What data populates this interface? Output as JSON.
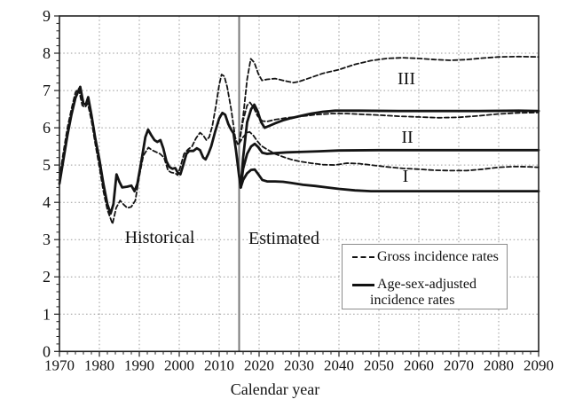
{
  "colors": {
    "line": "#141414",
    "grid": "#9a9a9a",
    "divider": "#7a7a7a",
    "border": "#222222",
    "legend_border": "#8c8c8c",
    "background": "#ffffff"
  },
  "annotations": {
    "historical": "Historical",
    "estimated": "Estimated",
    "scenario_I": "I",
    "scenario_II": "II",
    "scenario_III": "III"
  },
  "legend": {
    "gross_label": "Gross incidence rates",
    "adjusted_label_line1": "Age-sex-adjusted",
    "adjusted_label_line2": "incidence rates"
  },
  "chart_data": {
    "type": "line",
    "title": "",
    "xlabel": "Calendar year",
    "ylabel": "",
    "xlim": [
      1970,
      2090
    ],
    "ylim": [
      0,
      9
    ],
    "x_ticks": [
      1970,
      1980,
      1990,
      2000,
      2010,
      2020,
      2030,
      2040,
      2050,
      2060,
      2070,
      2080,
      2090
    ],
    "y_ticks": [
      0,
      1,
      2,
      3,
      4,
      5,
      6,
      7,
      8,
      9
    ],
    "x_minor_step": 2,
    "y_minor_step": 0.2,
    "grid": "dotted",
    "divider_year": 2015,
    "legend_position": "bottom-right",
    "series": [
      {
        "name": "historical-gross",
        "style": "dashed",
        "points": [
          [
            1970,
            4.65
          ],
          [
            1971,
            5.35
          ],
          [
            1972,
            6.0
          ],
          [
            1973,
            6.5
          ],
          [
            1974,
            6.95
          ],
          [
            1974.8,
            7.05
          ],
          [
            1975.7,
            6.6
          ],
          [
            1976.4,
            6.55
          ],
          [
            1977.1,
            6.65
          ],
          [
            1978,
            6.2
          ],
          [
            1979,
            5.55
          ],
          [
            1980,
            4.95
          ],
          [
            1981,
            4.3
          ],
          [
            1982,
            3.8
          ],
          [
            1983.3,
            3.42
          ],
          [
            1984.2,
            3.85
          ],
          [
            1985.2,
            4.05
          ],
          [
            1986,
            3.95
          ],
          [
            1987,
            3.85
          ],
          [
            1988,
            3.88
          ],
          [
            1989,
            4.05
          ],
          [
            1990,
            4.7
          ],
          [
            1991,
            5.25
          ],
          [
            1992.3,
            5.47
          ],
          [
            1993.2,
            5.4
          ],
          [
            1994.2,
            5.35
          ],
          [
            1995.2,
            5.3
          ],
          [
            1996.2,
            5.2
          ],
          [
            1997.2,
            4.85
          ],
          [
            1998,
            4.8
          ],
          [
            1999,
            4.78
          ],
          [
            1999.6,
            4.73
          ],
          [
            2000.3,
            4.95
          ],
          [
            2001.2,
            5.3
          ],
          [
            2002.2,
            5.42
          ],
          [
            2003.2,
            5.5
          ],
          [
            2004.2,
            5.72
          ],
          [
            2005.2,
            5.87
          ],
          [
            2006,
            5.8
          ],
          [
            2006.8,
            5.67
          ],
          [
            2007.5,
            5.75
          ],
          [
            2008.3,
            6.05
          ],
          [
            2009.2,
            6.6
          ],
          [
            2010,
            7.15
          ],
          [
            2010.6,
            7.43
          ],
          [
            2011.3,
            7.38
          ],
          [
            2012,
            7.1
          ],
          [
            2013,
            6.5
          ],
          [
            2014,
            5.75
          ],
          [
            2014.6,
            5.56
          ],
          [
            2015,
            5.58
          ]
        ]
      },
      {
        "name": "historical-adjusted",
        "style": "solid",
        "points": [
          [
            1970,
            4.5
          ],
          [
            1971,
            5.15
          ],
          [
            1972,
            5.8
          ],
          [
            1973,
            6.35
          ],
          [
            1974,
            6.8
          ],
          [
            1975.2,
            7.1
          ],
          [
            1976,
            6.65
          ],
          [
            1976.6,
            6.62
          ],
          [
            1977.2,
            6.82
          ],
          [
            1978,
            6.35
          ],
          [
            1979,
            5.7
          ],
          [
            1980,
            5.15
          ],
          [
            1981,
            4.5
          ],
          [
            1982,
            3.95
          ],
          [
            1982.8,
            3.7
          ],
          [
            1983.5,
            3.95
          ],
          [
            1984.3,
            4.75
          ],
          [
            1985,
            4.55
          ],
          [
            1985.7,
            4.4
          ],
          [
            1987,
            4.42
          ],
          [
            1988,
            4.45
          ],
          [
            1988.8,
            4.3
          ],
          [
            1989.5,
            4.5
          ],
          [
            1990.5,
            5.1
          ],
          [
            1991.5,
            5.75
          ],
          [
            1992.2,
            5.95
          ],
          [
            1993,
            5.8
          ],
          [
            1993.8,
            5.67
          ],
          [
            1994.5,
            5.62
          ],
          [
            1995.3,
            5.67
          ],
          [
            1996,
            5.45
          ],
          [
            1996.8,
            5.1
          ],
          [
            1997.5,
            4.95
          ],
          [
            1998.3,
            4.9
          ],
          [
            1999,
            4.92
          ],
          [
            1999.6,
            4.8
          ],
          [
            2000.3,
            4.75
          ],
          [
            2001,
            5.0
          ],
          [
            2001.8,
            5.3
          ],
          [
            2002.5,
            5.38
          ],
          [
            2003.5,
            5.38
          ],
          [
            2004.4,
            5.45
          ],
          [
            2005.2,
            5.4
          ],
          [
            2006,
            5.2
          ],
          [
            2006.6,
            5.15
          ],
          [
            2007.3,
            5.3
          ],
          [
            2008,
            5.5
          ],
          [
            2009,
            5.9
          ],
          [
            2010,
            6.25
          ],
          [
            2010.8,
            6.4
          ],
          [
            2011.5,
            6.35
          ],
          [
            2012.3,
            6.1
          ],
          [
            2013,
            5.95
          ],
          [
            2013.6,
            5.85
          ],
          [
            2014.2,
            5.4
          ],
          [
            2015,
            4.7
          ],
          [
            2015.4,
            4.4
          ]
        ]
      },
      {
        "name": "projected-gross-III",
        "style": "dashed",
        "points": [
          [
            2015,
            5.58
          ],
          [
            2016,
            6.3
          ],
          [
            2017,
            7.3
          ],
          [
            2017.9,
            7.85
          ],
          [
            2018.8,
            7.75
          ],
          [
            2019.8,
            7.45
          ],
          [
            2020.7,
            7.27
          ],
          [
            2022,
            7.3
          ],
          [
            2024,
            7.32
          ],
          [
            2026,
            7.27
          ],
          [
            2028.5,
            7.21
          ],
          [
            2030,
            7.24
          ],
          [
            2033,
            7.35
          ],
          [
            2036,
            7.46
          ],
          [
            2040,
            7.56
          ],
          [
            2044,
            7.7
          ],
          [
            2048,
            7.8
          ],
          [
            2052,
            7.86
          ],
          [
            2056,
            7.88
          ],
          [
            2060,
            7.86
          ],
          [
            2064,
            7.83
          ],
          [
            2068,
            7.81
          ],
          [
            2072,
            7.83
          ],
          [
            2076,
            7.87
          ],
          [
            2080,
            7.9
          ],
          [
            2085,
            7.91
          ],
          [
            2090,
            7.9
          ]
        ]
      },
      {
        "name": "projected-adjusted-III",
        "style": "solid",
        "points": [
          [
            2015.4,
            4.4
          ],
          [
            2016,
            5.2
          ],
          [
            2017,
            6.15
          ],
          [
            2018,
            6.5
          ],
          [
            2018.8,
            6.62
          ],
          [
            2019.6,
            6.45
          ],
          [
            2020.5,
            6.15
          ],
          [
            2021.4,
            6.0
          ],
          [
            2022.5,
            6.05
          ],
          [
            2024,
            6.12
          ],
          [
            2026,
            6.2
          ],
          [
            2028,
            6.26
          ],
          [
            2030,
            6.31
          ],
          [
            2033,
            6.38
          ],
          [
            2036,
            6.43
          ],
          [
            2039,
            6.46
          ],
          [
            2045,
            6.46
          ],
          [
            2055,
            6.45
          ],
          [
            2065,
            6.45
          ],
          [
            2075,
            6.45
          ],
          [
            2085,
            6.46
          ],
          [
            2090,
            6.45
          ]
        ]
      },
      {
        "name": "projected-gross-II",
        "style": "dashed",
        "points": [
          [
            2015,
            5.58
          ],
          [
            2016,
            6.2
          ],
          [
            2017,
            6.6
          ],
          [
            2017.7,
            6.68
          ],
          [
            2018.6,
            6.55
          ],
          [
            2019.6,
            6.32
          ],
          [
            2020.8,
            6.18
          ],
          [
            2022,
            6.17
          ],
          [
            2024,
            6.22
          ],
          [
            2027,
            6.27
          ],
          [
            2030,
            6.3
          ],
          [
            2034,
            6.35
          ],
          [
            2038,
            6.38
          ],
          [
            2042,
            6.38
          ],
          [
            2046,
            6.36
          ],
          [
            2050,
            6.34
          ],
          [
            2055,
            6.31
          ],
          [
            2060,
            6.29
          ],
          [
            2065,
            6.27
          ],
          [
            2070,
            6.28
          ],
          [
            2075,
            6.32
          ],
          [
            2080,
            6.37
          ],
          [
            2085,
            6.4
          ],
          [
            2090,
            6.41
          ]
        ]
      },
      {
        "name": "projected-adjusted-II",
        "style": "solid",
        "points": [
          [
            2015.4,
            4.4
          ],
          [
            2016,
            4.9
          ],
          [
            2017,
            5.3
          ],
          [
            2018,
            5.5
          ],
          [
            2018.9,
            5.57
          ],
          [
            2019.8,
            5.48
          ],
          [
            2020.8,
            5.33
          ],
          [
            2022,
            5.3
          ],
          [
            2024,
            5.32
          ],
          [
            2027,
            5.34
          ],
          [
            2030,
            5.35
          ],
          [
            2035,
            5.37
          ],
          [
            2040,
            5.39
          ],
          [
            2050,
            5.4
          ],
          [
            2060,
            5.4
          ],
          [
            2070,
            5.4
          ],
          [
            2080,
            5.4
          ],
          [
            2090,
            5.4
          ]
        ]
      },
      {
        "name": "projected-gross-I",
        "style": "dashed",
        "points": [
          [
            2015,
            5.58
          ],
          [
            2016,
            5.75
          ],
          [
            2017,
            5.87
          ],
          [
            2017.6,
            5.89
          ],
          [
            2018.5,
            5.8
          ],
          [
            2019.5,
            5.65
          ],
          [
            2020.5,
            5.52
          ],
          [
            2022,
            5.42
          ],
          [
            2024,
            5.3
          ],
          [
            2026,
            5.22
          ],
          [
            2028,
            5.15
          ],
          [
            2030,
            5.1
          ],
          [
            2033,
            5.05
          ],
          [
            2036,
            5.01
          ],
          [
            2039,
            5.0
          ],
          [
            2042,
            5.05
          ],
          [
            2045,
            5.04
          ],
          [
            2048,
            5.0
          ],
          [
            2052,
            4.95
          ],
          [
            2056,
            4.91
          ],
          [
            2060,
            4.89
          ],
          [
            2064,
            4.86
          ],
          [
            2068,
            4.85
          ],
          [
            2072,
            4.85
          ],
          [
            2076,
            4.89
          ],
          [
            2080,
            4.94
          ],
          [
            2084,
            4.96
          ],
          [
            2088,
            4.95
          ],
          [
            2090,
            4.94
          ]
        ]
      },
      {
        "name": "projected-adjusted-I",
        "style": "solid",
        "points": [
          [
            2015.4,
            4.4
          ],
          [
            2016,
            4.6
          ],
          [
            2017,
            4.78
          ],
          [
            2018,
            4.87
          ],
          [
            2018.9,
            4.88
          ],
          [
            2019.8,
            4.75
          ],
          [
            2020.8,
            4.6
          ],
          [
            2022,
            4.56
          ],
          [
            2024,
            4.56
          ],
          [
            2026,
            4.55
          ],
          [
            2028,
            4.52
          ],
          [
            2031,
            4.47
          ],
          [
            2034,
            4.44
          ],
          [
            2037,
            4.4
          ],
          [
            2040,
            4.36
          ],
          [
            2044,
            4.32
          ],
          [
            2048,
            4.3
          ],
          [
            2055,
            4.3
          ],
          [
            2065,
            4.3
          ],
          [
            2075,
            4.3
          ],
          [
            2085,
            4.3
          ],
          [
            2090,
            4.3
          ]
        ]
      }
    ]
  }
}
